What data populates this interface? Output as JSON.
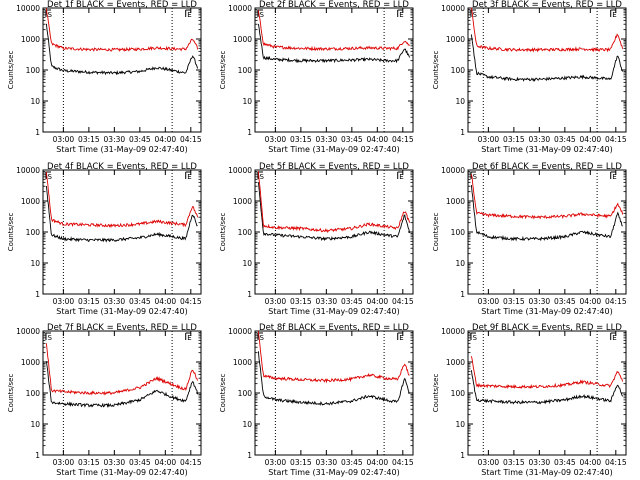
{
  "colors": {
    "events": "#000000",
    "lld": "#dd0000",
    "axis": "#000000",
    "background": "#ffffff"
  },
  "common": {
    "ylabel": "Counts/sec",
    "xlabel": "Start Time (31-May-09 02:47:40)",
    "yticks": [
      "1",
      "10",
      "100",
      "1000",
      "10000"
    ],
    "xticks": [
      "03:00",
      "03:15",
      "03:30",
      "03:45",
      "04:00",
      "04:15"
    ],
    "corner_marks": [
      "S",
      "E"
    ]
  },
  "chart_data": [
    {
      "type": "line",
      "title": "Det 1f BLACK = Events, RED = LLD",
      "ylabel": "Counts/sec",
      "xlabel": "Start Time (31-May-09 02:47:40)",
      "y_scale": "log",
      "ylim": [
        1,
        10000
      ],
      "x": [
        "02:50",
        "02:53",
        "03:00",
        "03:15",
        "03:30",
        "03:45",
        "03:55",
        "04:05",
        "04:12",
        "04:16",
        "04:19"
      ],
      "series": [
        {
          "name": "BLACK = Events",
          "values": [
            3000,
            130,
            95,
            85,
            80,
            90,
            120,
            95,
            80,
            300,
            120
          ]
        },
        {
          "name": "RED = LLD",
          "values": [
            9000,
            700,
            500,
            460,
            450,
            470,
            520,
            480,
            470,
            1000,
            500
          ]
        }
      ],
      "vlines": [
        "03:00",
        "04:04"
      ],
      "grid": false
    },
    {
      "type": "line",
      "title": "Det 2f BLACK = Events, RED = LLD",
      "ylabel": "Counts/sec",
      "xlabel": "Start Time (31-May-09 02:47:40)",
      "y_scale": "log",
      "ylim": [
        1,
        10000
      ],
      "x": [
        "02:50",
        "02:53",
        "03:00",
        "03:15",
        "03:30",
        "03:45",
        "03:55",
        "04:05",
        "04:12",
        "04:16",
        "04:19"
      ],
      "series": [
        {
          "name": "BLACK = Events",
          "values": [
            3000,
            250,
            220,
            200,
            200,
            210,
            220,
            200,
            200,
            500,
            250
          ]
        },
        {
          "name": "RED = LLD",
          "values": [
            8000,
            700,
            550,
            500,
            480,
            500,
            520,
            500,
            500,
            900,
            600
          ]
        }
      ],
      "vlines": [
        "03:00",
        "04:04"
      ],
      "grid": false
    },
    {
      "type": "line",
      "title": "Det 3f BLACK = Events, RED = LLD",
      "ylabel": "Counts/sec",
      "xlabel": "Start Time (31-May-09 02:47:40)",
      "y_scale": "log",
      "ylim": [
        1,
        10000
      ],
      "x": [
        "02:50",
        "02:53",
        "03:00",
        "03:15",
        "03:30",
        "03:45",
        "03:55",
        "04:05",
        "04:12",
        "04:16",
        "04:19"
      ],
      "series": [
        {
          "name": "BLACK = Events",
          "values": [
            1500,
            80,
            60,
            50,
            50,
            55,
            60,
            55,
            50,
            300,
            90
          ]
        },
        {
          "name": "RED = LLD",
          "values": [
            10000,
            600,
            500,
            450,
            450,
            460,
            480,
            450,
            450,
            1500,
            500
          ]
        }
      ],
      "vlines": [
        "02:57",
        "04:04"
      ],
      "grid": false
    },
    {
      "type": "line",
      "title": "Det 4f BLACK = Events, RED = LLD",
      "ylabel": "Counts/sec",
      "xlabel": "Start Time (31-May-09 02:47:40)",
      "y_scale": "log",
      "ylim": [
        1,
        10000
      ],
      "x": [
        "02:50",
        "02:53",
        "03:00",
        "03:15",
        "03:30",
        "03:45",
        "03:55",
        "04:05",
        "04:12",
        "04:16",
        "04:19"
      ],
      "series": [
        {
          "name": "BLACK = Events",
          "values": [
            3000,
            80,
            60,
            55,
            55,
            65,
            85,
            70,
            60,
            400,
            150
          ]
        },
        {
          "name": "RED = LLD",
          "values": [
            9000,
            250,
            180,
            170,
            160,
            180,
            220,
            190,
            170,
            700,
            300
          ]
        }
      ],
      "vlines": [
        "03:00",
        "04:04"
      ],
      "grid": false
    },
    {
      "type": "line",
      "title": "Det 5f BLACK = Events, RED = LLD",
      "ylabel": "Counts/sec",
      "xlabel": "Start Time (31-May-09 02:47:40)",
      "y_scale": "log",
      "ylim": [
        1,
        10000
      ],
      "x": [
        "02:50",
        "02:53",
        "03:00",
        "03:15",
        "03:30",
        "03:45",
        "03:55",
        "04:05",
        "04:12",
        "04:16",
        "04:19"
      ],
      "series": [
        {
          "name": "BLACK = Events",
          "values": [
            4000,
            90,
            80,
            70,
            60,
            70,
            100,
            80,
            70,
            350,
            100
          ]
        },
        {
          "name": "RED = LLD",
          "values": [
            9000,
            160,
            140,
            130,
            110,
            130,
            180,
            150,
            130,
            500,
            200
          ]
        }
      ],
      "vlines": [
        "03:00",
        "04:04"
      ],
      "grid": false
    },
    {
      "type": "line",
      "title": "Det 6f BLACK = Events, RED = LLD",
      "ylabel": "Counts/sec",
      "xlabel": "Start Time (31-May-09 02:47:40)",
      "y_scale": "log",
      "ylim": [
        1,
        10000
      ],
      "x": [
        "02:50",
        "02:53",
        "03:00",
        "03:15",
        "03:30",
        "03:45",
        "03:55",
        "04:05",
        "04:12",
        "04:16",
        "04:19"
      ],
      "series": [
        {
          "name": "BLACK = Events",
          "values": [
            3000,
            100,
            70,
            60,
            60,
            70,
            100,
            80,
            70,
            400,
            150
          ]
        },
        {
          "name": "RED = LLD",
          "values": [
            8000,
            400,
            350,
            320,
            300,
            320,
            380,
            340,
            320,
            800,
            400
          ]
        }
      ],
      "vlines": [
        "02:57",
        "04:04"
      ],
      "grid": false
    },
    {
      "type": "line",
      "title": "Det 7f BLACK = Events, RED = LLD",
      "ylabel": "Counts/sec",
      "xlabel": "Start Time (31-May-09 02:47:40)",
      "y_scale": "log",
      "ylim": [
        1,
        10000
      ],
      "x": [
        "02:50",
        "02:53",
        "03:00",
        "03:15",
        "03:30",
        "03:45",
        "03:55",
        "04:05",
        "04:12",
        "04:16",
        "04:19"
      ],
      "series": [
        {
          "name": "BLACK = Events",
          "values": [
            1000,
            50,
            45,
            40,
            40,
            60,
            120,
            70,
            55,
            250,
            100
          ]
        },
        {
          "name": "RED = LLD",
          "values": [
            4000,
            120,
            110,
            100,
            100,
            150,
            300,
            180,
            130,
            600,
            250
          ]
        }
      ],
      "vlines": [
        "03:00",
        "04:04"
      ],
      "grid": false
    },
    {
      "type": "line",
      "title": "Det 8f BLACK = Events, RED = LLD",
      "ylabel": "Counts/sec",
      "xlabel": "Start Time (31-May-09 02:47:40)",
      "y_scale": "log",
      "ylim": [
        1,
        10000
      ],
      "x": [
        "02:50",
        "02:53",
        "03:00",
        "03:15",
        "03:30",
        "03:45",
        "03:55",
        "04:05",
        "04:12",
        "04:16",
        "04:19"
      ],
      "series": [
        {
          "name": "BLACK = Events",
          "values": [
            2000,
            80,
            60,
            50,
            45,
            55,
            80,
            60,
            50,
            300,
            100
          ]
        },
        {
          "name": "RED = LLD",
          "values": [
            9000,
            350,
            300,
            270,
            250,
            280,
            380,
            300,
            270,
            900,
            350
          ]
        }
      ],
      "vlines": [
        "03:00",
        "04:04"
      ],
      "grid": false
    },
    {
      "type": "line",
      "title": "Det 9f BLACK = Events, RED = LLD",
      "ylabel": "Counts/sec",
      "xlabel": "Start Time (31-May-09 02:47:40)",
      "y_scale": "log",
      "ylim": [
        1,
        10000
      ],
      "x": [
        "02:50",
        "02:53",
        "03:00",
        "03:15",
        "03:30",
        "03:45",
        "03:55",
        "04:05",
        "04:12",
        "04:16",
        "04:19"
      ],
      "series": [
        {
          "name": "BLACK = Events",
          "values": [
            500,
            60,
            55,
            50,
            50,
            60,
            80,
            65,
            55,
            200,
            80
          ]
        },
        {
          "name": "RED = LLD",
          "values": [
            1500,
            180,
            170,
            160,
            160,
            180,
            230,
            190,
            170,
            500,
            250
          ]
        }
      ],
      "vlines": [
        "02:57",
        "04:04"
      ],
      "grid": false
    }
  ]
}
